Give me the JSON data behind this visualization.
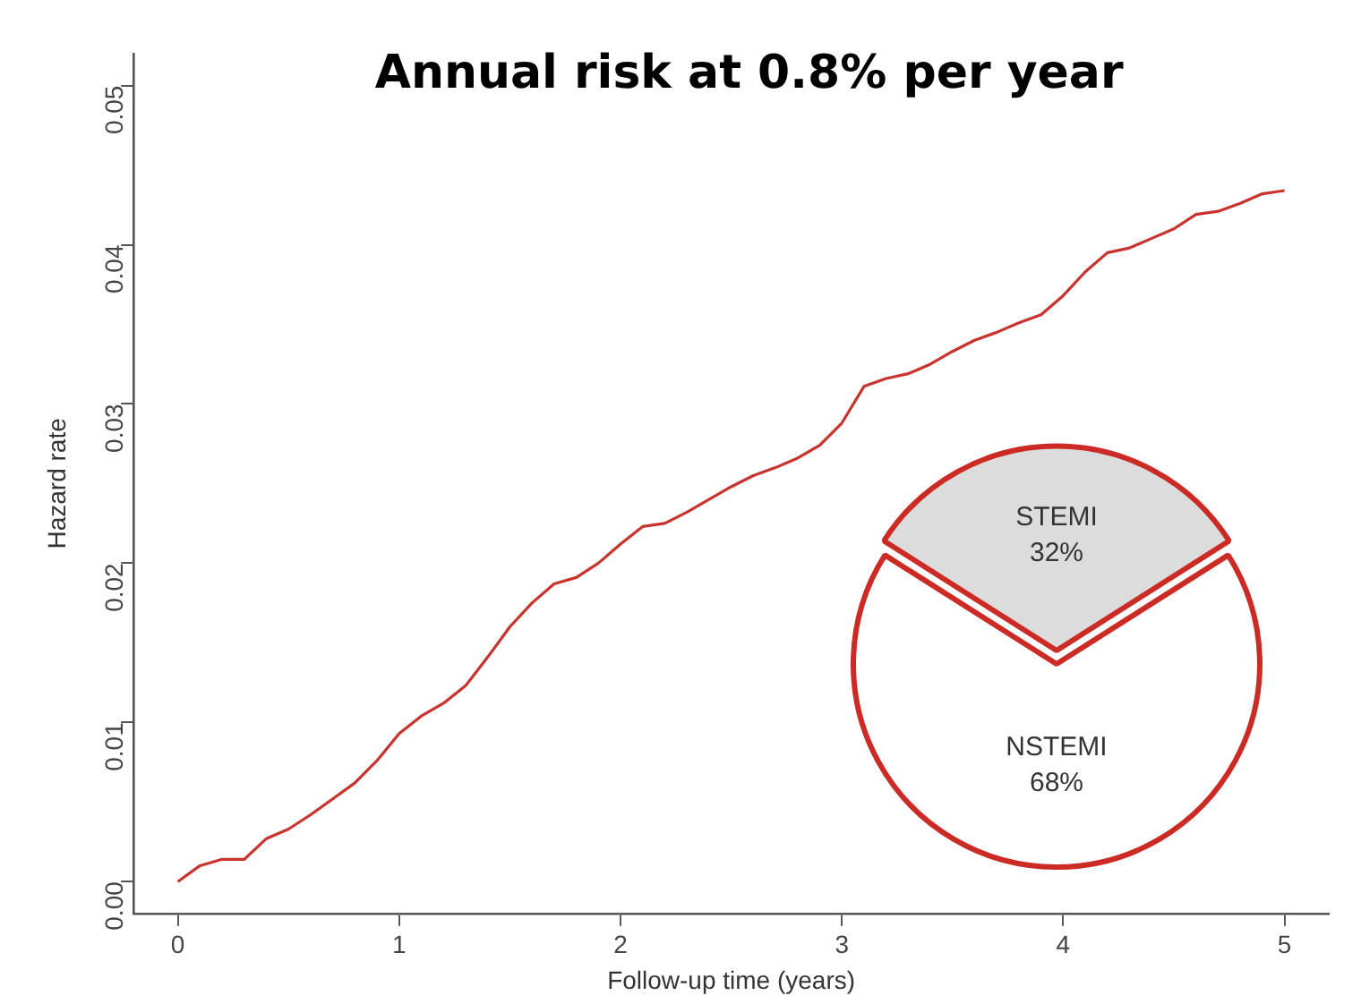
{
  "chart_data": [
    {
      "type": "line",
      "title": "Annual risk at 0.8% per year",
      "xlabel": "Follow-up time (years)",
      "ylabel": "Hazard rate",
      "x": [
        0,
        0.1,
        0.2,
        0.3,
        0.4,
        0.5,
        0.6,
        0.7,
        0.8,
        0.9,
        1.0,
        1.1,
        1.2,
        1.3,
        1.4,
        1.5,
        1.6,
        1.7,
        1.8,
        1.9,
        2.0,
        2.1,
        2.2,
        2.3,
        2.4,
        2.5,
        2.6,
        2.7,
        2.8,
        2.9,
        3.0,
        3.1,
        3.2,
        3.3,
        3.4,
        3.5,
        3.6,
        3.7,
        3.8,
        3.9,
        4.0,
        4.1,
        4.2,
        4.3,
        4.4,
        4.5,
        4.6,
        4.7,
        4.8,
        4.9,
        5.0
      ],
      "series": [
        {
          "color": "#c8332e",
          "values": [
            0.0,
            0.001,
            0.0014,
            0.0014,
            0.0027,
            0.0033,
            0.0042,
            0.0052,
            0.0062,
            0.0076,
            0.0093,
            0.0104,
            0.0112,
            0.0123,
            0.0141,
            0.016,
            0.0175,
            0.0187,
            0.0191,
            0.02,
            0.0212,
            0.0223,
            0.0225,
            0.0232,
            0.024,
            0.0248,
            0.0255,
            0.026,
            0.0266,
            0.0274,
            0.0288,
            0.0311,
            0.0316,
            0.0319,
            0.0325,
            0.0333,
            0.034,
            0.0345,
            0.0351,
            0.0356,
            0.0368,
            0.0383,
            0.0395,
            0.0398,
            0.0404,
            0.041,
            0.0419,
            0.0421,
            0.0426,
            0.0432,
            0.0434
          ]
        }
      ],
      "xlim": [
        -0.2,
        5.2
      ],
      "ylim": [
        -0.002,
        0.052
      ],
      "xticks": [
        0,
        1,
        2,
        3,
        4,
        5
      ],
      "yticks": [
        {
          "value": 0,
          "label": "0.00"
        },
        {
          "value": 0.01,
          "label": "0.01"
        },
        {
          "value": 0.02,
          "label": "0.02"
        },
        {
          "value": 0.03,
          "label": "0.03"
        },
        {
          "value": 0.04,
          "label": "0.04"
        },
        {
          "value": 0.05,
          "label": "0.05"
        }
      ],
      "grid": false,
      "legend": false,
      "marker": "none",
      "line_style": "solid"
    },
    {
      "type": "pie",
      "categories": [
        "STEMI",
        "NSTEMI"
      ],
      "values": [
        32,
        68
      ],
      "colors": [
        "#dcdcdc",
        "#ffffff"
      ],
      "value_labels": [
        "32%",
        "68%"
      ],
      "legend": false
    }
  ]
}
